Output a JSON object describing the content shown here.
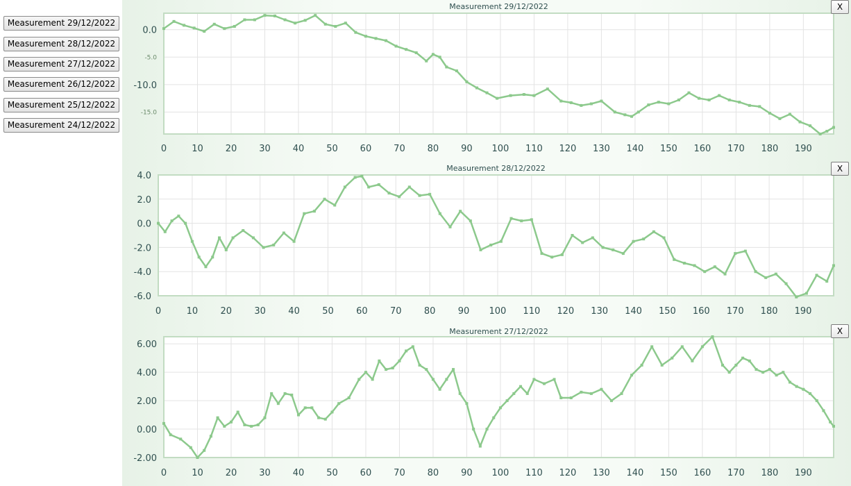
{
  "sidebar": {
    "buttons": [
      {
        "label": "Measurement 29/12/2022"
      },
      {
        "label": "Measurement 28/12/2022"
      },
      {
        "label": "Measurement 27/12/2022"
      },
      {
        "label": "Measurement 26/12/2022"
      },
      {
        "label": "Measurement 25/12/2022"
      },
      {
        "label": "Measurement 24/12/2022"
      }
    ]
  },
  "close_label": "X",
  "colors": {
    "line": "#8cc98c",
    "grid": "#e3e3e3",
    "axis": "#c2dcc2",
    "text": "#2f4f4f"
  },
  "chart_data": [
    {
      "type": "line",
      "title": "Measurement 29/12/2022",
      "xlabel": "",
      "ylabel": "",
      "xlim": [
        0,
        199
      ],
      "ylim": [
        -19,
        3
      ],
      "xticks": [
        0,
        10,
        20,
        30,
        40,
        50,
        60,
        70,
        80,
        90,
        100,
        110,
        120,
        130,
        140,
        150,
        160,
        170,
        180,
        190
      ],
      "xtick_labels": [
        "0",
        "10",
        "20",
        "30",
        "40",
        "50",
        "60",
        "70",
        "80",
        "90",
        "100",
        "110",
        "120",
        "130",
        "140",
        "150",
        "160",
        "170",
        "180",
        "190"
      ],
      "yticks": [
        0,
        -5,
        -10,
        -15
      ],
      "ytick_labels": [
        "0.0",
        "-5.0",
        "-10.0",
        "-15.0"
      ],
      "ytick_small": [
        false,
        true,
        false,
        true
      ],
      "grid": true,
      "series": [
        {
          "points": [
            [
              0,
              0.2
            ],
            [
              3,
              1.5
            ],
            [
              6,
              0.8
            ],
            [
              9,
              0.3
            ],
            [
              12,
              -0.3
            ],
            [
              15,
              1
            ],
            [
              18,
              0.2
            ],
            [
              21,
              0.6
            ],
            [
              24,
              1.8
            ],
            [
              27,
              1.8
            ],
            [
              30,
              2.6
            ],
            [
              33,
              2.5
            ],
            [
              36,
              1.8
            ],
            [
              39,
              1.2
            ],
            [
              42,
              1.7
            ],
            [
              45,
              2.6
            ],
            [
              48,
              1
            ],
            [
              51,
              0.6
            ],
            [
              54,
              1.2
            ],
            [
              57,
              -0.5
            ],
            [
              60,
              -1.2
            ],
            [
              63,
              -1.6
            ],
            [
              66,
              -2
            ],
            [
              69,
              -3
            ],
            [
              72,
              -3.6
            ],
            [
              75,
              -4.2
            ],
            [
              78,
              -5.7
            ],
            [
              80,
              -4.5
            ],
            [
              82,
              -5
            ],
            [
              84,
              -6.8
            ],
            [
              87,
              -7.5
            ],
            [
              90,
              -9.5
            ],
            [
              93,
              -10.6
            ],
            [
              96,
              -11.5
            ],
            [
              99,
              -12.5
            ],
            [
              103,
              -12
            ],
            [
              107,
              -11.8
            ],
            [
              110,
              -12
            ],
            [
              114,
              -10.8
            ],
            [
              118,
              -13
            ],
            [
              121,
              -13.3
            ],
            [
              124,
              -13.8
            ],
            [
              127,
              -13.5
            ],
            [
              130,
              -13
            ],
            [
              134,
              -15
            ],
            [
              137,
              -15.5
            ],
            [
              139,
              -15.8
            ],
            [
              141,
              -15
            ],
            [
              144,
              -13.7
            ],
            [
              147,
              -13.2
            ],
            [
              150,
              -13.5
            ],
            [
              153,
              -12.8
            ],
            [
              156,
              -11.5
            ],
            [
              159,
              -12.5
            ],
            [
              162,
              -12.8
            ],
            [
              165,
              -12
            ],
            [
              168,
              -12.8
            ],
            [
              171,
              -13.2
            ],
            [
              174,
              -13.8
            ],
            [
              177,
              -14
            ],
            [
              180,
              -15.2
            ],
            [
              183,
              -16.2
            ],
            [
              186,
              -15.4
            ],
            [
              189,
              -16.8
            ],
            [
              192,
              -17.5
            ],
            [
              195,
              -19
            ],
            [
              197,
              -18.5
            ],
            [
              199,
              -17.8
            ]
          ]
        }
      ]
    },
    {
      "type": "line",
      "title": "Measurement 28/12/2022",
      "xlabel": "",
      "ylabel": "",
      "xlim": [
        0,
        199
      ],
      "ylim": [
        -6,
        4
      ],
      "xticks": [
        0,
        10,
        20,
        30,
        40,
        50,
        60,
        70,
        80,
        90,
        100,
        110,
        120,
        130,
        140,
        150,
        160,
        170,
        180,
        190
      ],
      "xtick_labels": [
        "0",
        "10",
        "20",
        "30",
        "40",
        "50",
        "60",
        "70",
        "80",
        "90",
        "100",
        "110",
        "120",
        "130",
        "140",
        "150",
        "160",
        "170",
        "180",
        "190"
      ],
      "yticks": [
        4,
        2,
        0,
        -2,
        -4,
        -6
      ],
      "ytick_labels": [
        "4.0",
        "2.0",
        "0.0",
        "-2.0",
        "-4.0",
        "-6.0"
      ],
      "ytick_small": [
        false,
        false,
        false,
        false,
        false,
        false
      ],
      "grid": true,
      "series": [
        {
          "points": [
            [
              0,
              0
            ],
            [
              2,
              -0.7
            ],
            [
              4,
              0.2
            ],
            [
              6,
              0.6
            ],
            [
              8,
              0
            ],
            [
              10,
              -1.5
            ],
            [
              12,
              -2.8
            ],
            [
              14,
              -3.6
            ],
            [
              16,
              -2.8
            ],
            [
              18,
              -1.2
            ],
            [
              20,
              -2.2
            ],
            [
              22,
              -1.2
            ],
            [
              25,
              -0.6
            ],
            [
              28,
              -1.2
            ],
            [
              31,
              -2
            ],
            [
              34,
              -1.8
            ],
            [
              37,
              -0.8
            ],
            [
              40,
              -1.5
            ],
            [
              43,
              0.8
            ],
            [
              46,
              1
            ],
            [
              49,
              2
            ],
            [
              52,
              1.5
            ],
            [
              55,
              3
            ],
            [
              58,
              3.8
            ],
            [
              60,
              3.9
            ],
            [
              62,
              3
            ],
            [
              65,
              3.2
            ],
            [
              68,
              2.5
            ],
            [
              71,
              2.2
            ],
            [
              74,
              3
            ],
            [
              77,
              2.3
            ],
            [
              80,
              2.4
            ],
            [
              83,
              0.8
            ],
            [
              86,
              -0.3
            ],
            [
              89,
              1
            ],
            [
              92,
              0.2
            ],
            [
              95,
              -2.2
            ],
            [
              98,
              -1.8
            ],
            [
              101,
              -1.5
            ],
            [
              104,
              0.4
            ],
            [
              107,
              0.2
            ],
            [
              110,
              0.3
            ],
            [
              113,
              -2.5
            ],
            [
              116,
              -2.8
            ],
            [
              119,
              -2.6
            ],
            [
              122,
              -1
            ],
            [
              125,
              -1.6
            ],
            [
              128,
              -1.2
            ],
            [
              131,
              -2
            ],
            [
              134,
              -2.2
            ],
            [
              137,
              -2.5
            ],
            [
              140,
              -1.5
            ],
            [
              143,
              -1.3
            ],
            [
              146,
              -0.7
            ],
            [
              149,
              -1.2
            ],
            [
              152,
              -3
            ],
            [
              155,
              -3.3
            ],
            [
              158,
              -3.5
            ],
            [
              161,
              -4
            ],
            [
              164,
              -3.6
            ],
            [
              167,
              -4.2
            ],
            [
              170,
              -2.5
            ],
            [
              173,
              -2.3
            ],
            [
              176,
              -4
            ],
            [
              179,
              -4.5
            ],
            [
              182,
              -4.2
            ],
            [
              185,
              -5
            ],
            [
              188,
              -6.1
            ],
            [
              191,
              -5.8
            ],
            [
              194,
              -4.3
            ],
            [
              197,
              -4.8
            ],
            [
              199,
              -3.5
            ]
          ]
        }
      ]
    },
    {
      "type": "line",
      "title": "Measurement 27/12/2022",
      "xlabel": "",
      "ylabel": "",
      "xlim": [
        0,
        199
      ],
      "ylim": [
        -2,
        6.5
      ],
      "xticks": [
        0,
        10,
        20,
        30,
        40,
        50,
        60,
        70,
        80,
        90,
        100,
        110,
        120,
        130,
        140,
        150,
        160,
        170,
        180,
        190
      ],
      "xtick_labels": [
        "0",
        "10",
        "20",
        "30",
        "40",
        "50",
        "60",
        "70",
        "80",
        "90",
        "100",
        "110",
        "120",
        "130",
        "140",
        "150",
        "160",
        "170",
        "180",
        "190"
      ],
      "yticks": [
        6,
        4,
        2,
        0,
        -2
      ],
      "ytick_labels": [
        "6.00",
        "4.00",
        "2.00",
        "0.00",
        "-2.00"
      ],
      "ytick_small": [
        false,
        false,
        false,
        false,
        false
      ],
      "grid": true,
      "series": [
        {
          "points": [
            [
              0,
              0.4
            ],
            [
              2,
              -0.4
            ],
            [
              5,
              -0.7
            ],
            [
              8,
              -1.3
            ],
            [
              10,
              -2
            ],
            [
              12,
              -1.5
            ],
            [
              14,
              -0.5
            ],
            [
              16,
              0.8
            ],
            [
              18,
              0.2
            ],
            [
              20,
              0.5
            ],
            [
              22,
              1.2
            ],
            [
              24,
              0.3
            ],
            [
              26,
              0.2
            ],
            [
              28,
              0.3
            ],
            [
              30,
              0.8
            ],
            [
              32,
              2.5
            ],
            [
              34,
              1.8
            ],
            [
              36,
              2.5
            ],
            [
              38,
              2.4
            ],
            [
              40,
              1
            ],
            [
              42,
              1.5
            ],
            [
              44,
              1.5
            ],
            [
              46,
              0.8
            ],
            [
              48,
              0.7
            ],
            [
              50,
              1.2
            ],
            [
              52,
              1.8
            ],
            [
              55,
              2.2
            ],
            [
              58,
              3.5
            ],
            [
              60,
              4
            ],
            [
              62,
              3.5
            ],
            [
              64,
              4.8
            ],
            [
              66,
              4.2
            ],
            [
              68,
              4.3
            ],
            [
              70,
              4.8
            ],
            [
              72,
              5.5
            ],
            [
              74,
              5.8
            ],
            [
              76,
              4.5
            ],
            [
              78,
              4.2
            ],
            [
              80,
              3.5
            ],
            [
              82,
              2.8
            ],
            [
              84,
              3.5
            ],
            [
              86,
              4.2
            ],
            [
              88,
              2.5
            ],
            [
              90,
              1.8
            ],
            [
              92,
              0
            ],
            [
              94,
              -1.2
            ],
            [
              96,
              0
            ],
            [
              98,
              0.8
            ],
            [
              100,
              1.5
            ],
            [
              102,
              2
            ],
            [
              104,
              2.5
            ],
            [
              106,
              3
            ],
            [
              108,
              2.5
            ],
            [
              110,
              3.5
            ],
            [
              113,
              3.2
            ],
            [
              116,
              3.5
            ],
            [
              118,
              2.2
            ],
            [
              121,
              2.2
            ],
            [
              124,
              2.6
            ],
            [
              127,
              2.5
            ],
            [
              130,
              2.8
            ],
            [
              133,
              2
            ],
            [
              136,
              2.5
            ],
            [
              139,
              3.8
            ],
            [
              142,
              4.5
            ],
            [
              145,
              5.8
            ],
            [
              148,
              4.5
            ],
            [
              151,
              5
            ],
            [
              154,
              5.8
            ],
            [
              157,
              4.8
            ],
            [
              160,
              5.8
            ],
            [
              163,
              6.5
            ],
            [
              166,
              4.5
            ],
            [
              168,
              4
            ],
            [
              170,
              4.5
            ],
            [
              172,
              5
            ],
            [
              174,
              4.8
            ],
            [
              176,
              4.2
            ],
            [
              178,
              4
            ],
            [
              180,
              4.2
            ],
            [
              182,
              3.8
            ],
            [
              184,
              4
            ],
            [
              186,
              3.3
            ],
            [
              188,
              3
            ],
            [
              190,
              2.8
            ],
            [
              192,
              2.5
            ],
            [
              194,
              2
            ],
            [
              196,
              1.3
            ],
            [
              198,
              0.5
            ],
            [
              199,
              0.2
            ]
          ]
        }
      ]
    }
  ]
}
